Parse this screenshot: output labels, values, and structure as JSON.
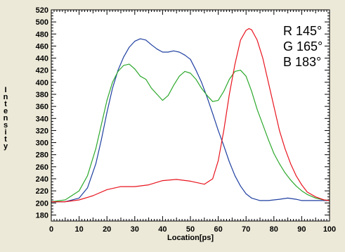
{
  "chart_data": {
    "type": "line",
    "xlabel": "Location[ps]",
    "ylabel": "Intensity",
    "xlim": [
      0,
      100
    ],
    "ylim": [
      170,
      520
    ],
    "x_ticks": [
      0,
      10,
      20,
      30,
      40,
      50,
      60,
      70,
      80,
      90,
      100
    ],
    "y_ticks": [
      180,
      200,
      220,
      240,
      260,
      280,
      300,
      320,
      340,
      360,
      380,
      400,
      420,
      440,
      460,
      480,
      500,
      520
    ],
    "legend": [
      {
        "text": "R 145°",
        "color": "#e8141e"
      },
      {
        "text": "G 165°",
        "color": "#2ca82c"
      },
      {
        "text": "B 183°",
        "color": "#1e3fa0"
      }
    ],
    "legend_position": "top-right",
    "background_color": "#ffffff",
    "series": [
      {
        "name": "R 145°",
        "color": "#e8141e",
        "x": [
          0,
          5,
          10,
          15,
          20,
          25,
          30,
          35,
          40,
          45,
          50,
          55,
          58,
          60,
          62,
          64,
          66,
          68,
          70,
          71,
          72,
          74,
          76,
          78,
          80,
          82,
          84,
          86,
          88,
          90,
          92,
          95,
          98,
          100
        ],
        "y": [
          202,
          202,
          205,
          212,
          222,
          227,
          227,
          230,
          237,
          239,
          236,
          231,
          240,
          270,
          320,
          380,
          430,
          470,
          486,
          489,
          487,
          470,
          440,
          400,
          360,
          320,
          290,
          265,
          245,
          230,
          218,
          210,
          205,
          204
        ]
      },
      {
        "name": "G 165°",
        "color": "#2ca82c",
        "x": [
          0,
          5,
          10,
          13,
          16,
          18,
          20,
          22,
          24,
          26,
          28,
          30,
          32,
          34,
          36,
          38,
          40,
          42,
          44,
          46,
          48,
          50,
          52,
          54,
          56,
          58,
          60,
          62,
          64,
          66,
          68,
          70,
          72,
          74,
          76,
          78,
          80,
          82,
          84,
          86,
          88,
          90,
          92,
          95,
          98,
          100
        ],
        "y": [
          202,
          205,
          220,
          245,
          290,
          330,
          370,
          400,
          418,
          428,
          430,
          422,
          410,
          405,
          390,
          380,
          370,
          378,
          395,
          410,
          418,
          415,
          405,
          390,
          378,
          368,
          370,
          385,
          405,
          418,
          420,
          410,
          385,
          355,
          330,
          305,
          282,
          265,
          250,
          238,
          228,
          220,
          214,
          208,
          205,
          204
        ]
      },
      {
        "name": "B 183°",
        "color": "#1e3fa0",
        "x": [
          0,
          5,
          10,
          13,
          16,
          18,
          20,
          22,
          24,
          26,
          28,
          30,
          32,
          34,
          36,
          38,
          40,
          42,
          44,
          46,
          48,
          50,
          52,
          54,
          56,
          58,
          60,
          62,
          64,
          66,
          68,
          70,
          72,
          75,
          78,
          80,
          82,
          85,
          88,
          90,
          95,
          100
        ],
        "y": [
          202,
          202,
          208,
          225,
          265,
          305,
          350,
          390,
          420,
          442,
          458,
          468,
          472,
          470,
          462,
          455,
          450,
          450,
          452,
          450,
          445,
          438,
          420,
          400,
          375,
          348,
          320,
          295,
          268,
          245,
          228,
          215,
          208,
          204,
          204,
          205,
          206,
          208,
          206,
          204,
          204,
          204
        ]
      }
    ]
  }
}
